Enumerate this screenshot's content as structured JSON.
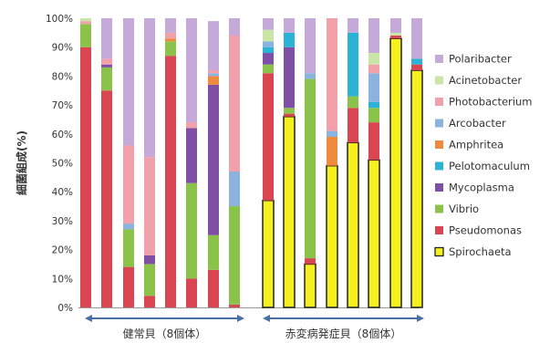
{
  "chart_data": {
    "type": "bar",
    "stacked": true,
    "ylabel": "細菌組成(%)",
    "yticks": [
      "0%",
      "10%",
      "20%",
      "30%",
      "40%",
      "50%",
      "60%",
      "70%",
      "80%",
      "90%",
      "100%"
    ],
    "ylim": [
      0,
      100
    ],
    "grid": false,
    "legend_position": "right",
    "groups": [
      {
        "label": "健常貝（8個体）",
        "count": 8
      },
      {
        "label": "赤変病発症貝（8個体）",
        "count": 8
      }
    ],
    "series": [
      {
        "name": "Spirochaeta",
        "color": "#f5f01e",
        "values": [
          0,
          0,
          0,
          0,
          0,
          0,
          0,
          0,
          37,
          66,
          15,
          49,
          57,
          51,
          93,
          82
        ]
      },
      {
        "name": "Pseudomonas",
        "color": "#d94550",
        "values": [
          90,
          75,
          14,
          4,
          87,
          10,
          13,
          1,
          44,
          1,
          2,
          0,
          12,
          13,
          1,
          2
        ]
      },
      {
        "name": "Vibrio",
        "color": "#8bc34a",
        "values": [
          8,
          8,
          13,
          11,
          5,
          33,
          12,
          34,
          3,
          2,
          62,
          0,
          4,
          5,
          0,
          0
        ]
      },
      {
        "name": "Mycoplasma",
        "color": "#7e4fa5",
        "values": [
          0,
          1,
          0,
          3,
          0,
          19,
          52,
          0,
          4,
          21,
          0,
          0,
          0,
          0,
          0,
          0
        ]
      },
      {
        "name": "Pelotomaculum",
        "color": "#2bb3d6",
        "values": [
          0,
          0,
          0,
          0,
          0,
          0,
          0,
          0,
          2,
          5,
          0,
          0,
          22,
          2,
          0,
          2
        ]
      },
      {
        "name": "Amphritea",
        "color": "#f08a3e",
        "values": [
          0,
          0,
          0,
          0,
          1,
          0,
          3,
          0,
          0,
          0,
          0,
          10,
          0,
          0,
          0,
          0
        ]
      },
      {
        "name": "Arcobacter",
        "color": "#8bb3e0",
        "values": [
          0,
          0,
          2,
          0,
          0,
          0,
          1,
          12,
          2,
          0,
          2,
          2,
          0,
          10,
          0,
          0
        ]
      },
      {
        "name": "Photobacterium",
        "color": "#f2a0aa",
        "values": [
          1,
          2,
          27,
          34,
          2,
          2,
          1,
          47,
          0,
          0,
          0,
          39,
          0,
          3,
          0,
          0
        ]
      },
      {
        "name": "Acinetobacter",
        "color": "#c9e6a7",
        "values": [
          1,
          0,
          0,
          0,
          0,
          0,
          0,
          0,
          4,
          0,
          0,
          0,
          0,
          4,
          1,
          0
        ]
      },
      {
        "name": "Polaribacter",
        "color": "#c4a9d9",
        "values": [
          0,
          14,
          44,
          48,
          5,
          36,
          17,
          6,
          4,
          5,
          19,
          0,
          5,
          12,
          5,
          14
        ]
      }
    ]
  }
}
